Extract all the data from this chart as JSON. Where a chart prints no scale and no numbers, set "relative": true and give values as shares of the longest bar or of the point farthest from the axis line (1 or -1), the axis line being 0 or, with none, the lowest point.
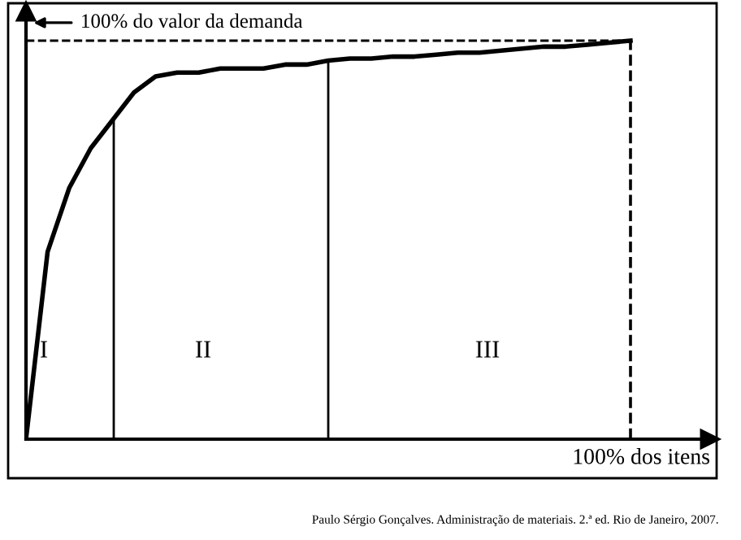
{
  "chart_data": {
    "type": "line",
    "relative": true,
    "xlabel": "100% dos itens",
    "categories": [
      null,
      null,
      null,
      null,
      null,
      null,
      null,
      null,
      null,
      null,
      null,
      null,
      null,
      null,
      null,
      null,
      null,
      null,
      null,
      null,
      null,
      null,
      null,
      null,
      null,
      null,
      null,
      null,
      null
    ],
    "series": [
      {
        "color": "#000000",
        "values": [
          0,
          0.47,
          0.63,
          0.73,
          0.8,
          0.87,
          0.91,
          0.92,
          0.92,
          0.93,
          0.93,
          0.93,
          0.94,
          0.94,
          0.95,
          0.955,
          0.955,
          0.96,
          0.96,
          0.965,
          0.97,
          0.97,
          0.975,
          0.98,
          0.985,
          0.985,
          0.99,
          0.995,
          1.0
        ]
      }
    ],
    "ref_lines": [
      {
        "axis": "y",
        "value": 1.0,
        "line_style": "dashed",
        "label": "100% do valor da demanda"
      }
    ],
    "annotations": [
      "I",
      "II",
      "III",
      "Paulo Sérgio Gonçalves. Administração de materiais. 2.ª ed. Rio de Janeiro, 2007."
    ],
    "marker": "none",
    "line_style": "solid"
  }
}
